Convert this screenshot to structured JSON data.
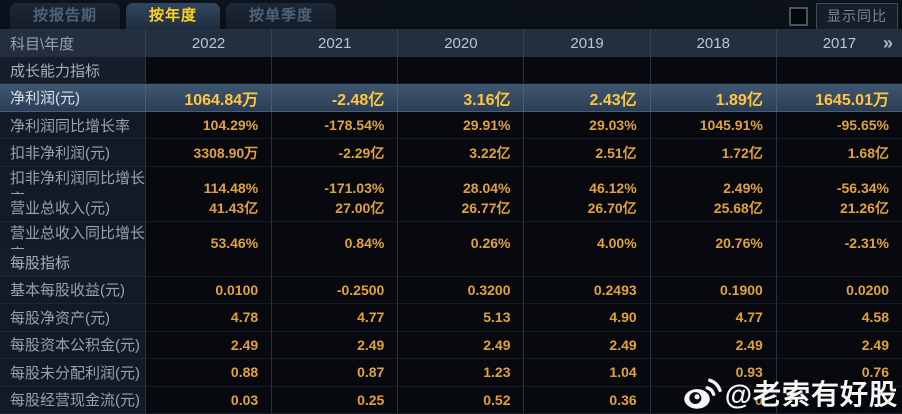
{
  "tabs": [
    {
      "label": "按报告期",
      "active": false
    },
    {
      "label": "按年度",
      "active": true
    },
    {
      "label": "按单季度",
      "active": false
    }
  ],
  "controls": {
    "show_yoy_label": "显示同比",
    "checkbox_checked": false
  },
  "table": {
    "corner_header": "科目\\年度",
    "year_headers": [
      "2022",
      "2021",
      "2020",
      "2019",
      "2018",
      "2017"
    ],
    "more_columns_icon": "»",
    "rows": [
      {
        "type": "section",
        "label": "成长能力指标",
        "values": [
          "",
          "",
          "",
          "",
          "",
          ""
        ]
      },
      {
        "type": "highlight",
        "label": "净利润(元)",
        "values": [
          "1064.84万",
          "-2.48亿",
          "3.16亿",
          "2.43亿",
          "1.89亿",
          "1645.01万"
        ]
      },
      {
        "type": "data",
        "label": "净利润同比增长率",
        "values": [
          "104.29%",
          "-178.54%",
          "29.91%",
          "29.03%",
          "1045.91%",
          "-95.65%"
        ]
      },
      {
        "type": "data",
        "label": "扣非净利润(元)",
        "values": [
          "3308.90万",
          "-2.29亿",
          "3.22亿",
          "2.51亿",
          "1.72亿",
          "1.68亿"
        ]
      },
      {
        "type": "data",
        "label": "扣非净利润同比增长率",
        "values": [
          "114.48%",
          "-171.03%",
          "28.04%",
          "46.12%",
          "2.49%",
          "-56.34%"
        ]
      },
      {
        "type": "data",
        "label": "营业总收入(元)",
        "values": [
          "41.43亿",
          "27.00亿",
          "26.77亿",
          "26.70亿",
          "25.68亿",
          "21.26亿"
        ]
      },
      {
        "type": "data",
        "label": "营业总收入同比增长率",
        "values": [
          "53.46%",
          "0.84%",
          "0.26%",
          "4.00%",
          "20.76%",
          "-2.31%"
        ]
      },
      {
        "type": "section",
        "label": "每股指标",
        "values": [
          "",
          "",
          "",
          "",
          "",
          ""
        ]
      },
      {
        "type": "data",
        "label": "基本每股收益(元)",
        "values": [
          "0.0100",
          "-0.2500",
          "0.3200",
          "0.2493",
          "0.1900",
          "0.0200"
        ]
      },
      {
        "type": "data",
        "label": "每股净资产(元)",
        "values": [
          "4.78",
          "4.77",
          "5.13",
          "4.90",
          "4.77",
          "4.58"
        ]
      },
      {
        "type": "data",
        "label": "每股资本公积金(元)",
        "values": [
          "2.49",
          "2.49",
          "2.49",
          "2.49",
          "2.49",
          "2.49"
        ]
      },
      {
        "type": "data",
        "label": "每股未分配利润(元)",
        "values": [
          "0.88",
          "0.87",
          "1.23",
          "1.04",
          "0.93",
          "0.76"
        ]
      },
      {
        "type": "data",
        "label": "每股经营现金流(元)",
        "values": [
          "0.03",
          "0.25",
          "0.52",
          "0.36",
          "0",
          ""
        ]
      }
    ]
  },
  "watermark": {
    "icon": "weibo-icon",
    "text": "@老索有好股"
  },
  "colors": {
    "tab_active_text": "#ffd21e",
    "value_text": "#e0a23e",
    "highlight_value_text": "#ffc63e",
    "highlight_row_bg": "#34485f",
    "header_row_bg": "#232f3e",
    "label_col_bg": "#131a25"
  }
}
